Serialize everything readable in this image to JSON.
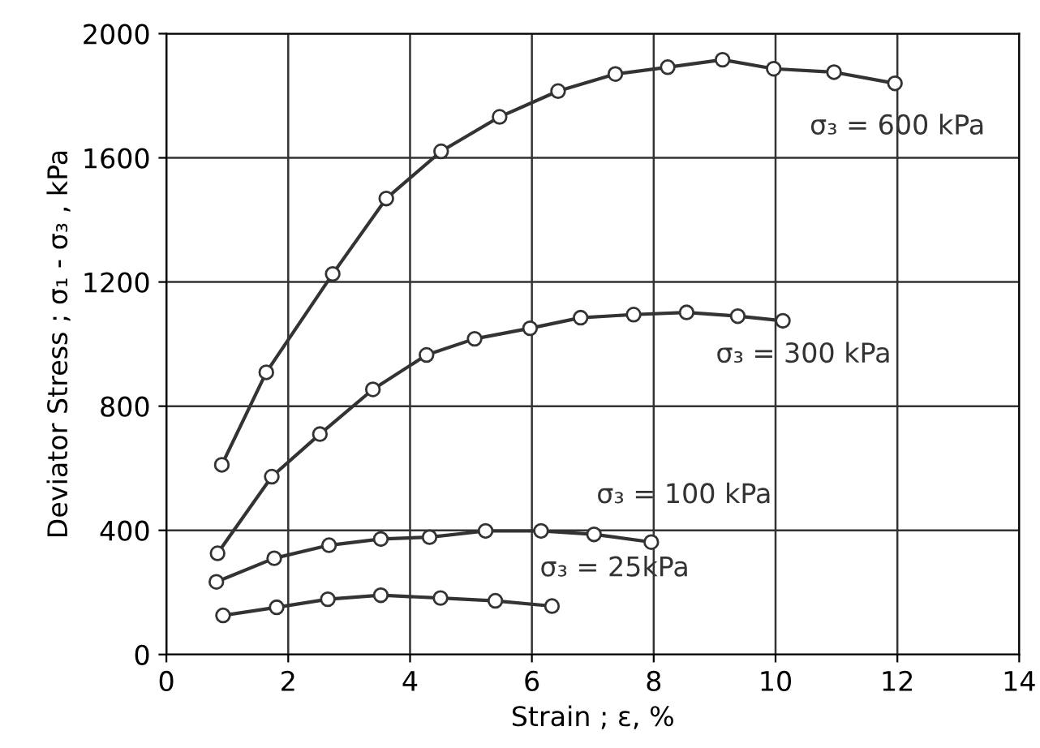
{
  "chart_data": {
    "type": "line",
    "xlabel": "Strain ; ε, %",
    "ylabel": "Deviator Stress ; σ₁ - σ₃ , kPa",
    "xlim": [
      0,
      14
    ],
    "ylim": [
      0,
      2000
    ],
    "xticks": [
      0,
      2,
      4,
      6,
      8,
      10,
      12,
      14
    ],
    "yticks": [
      0,
      400,
      800,
      1200,
      1600,
      2000
    ],
    "grid": true,
    "legend": false,
    "marker": "circle",
    "line_style": "solid",
    "series": [
      {
        "name": "σ₃ = 600 kPa",
        "color": "#333333",
        "x": [
          0.91,
          1.64,
          2.73,
          3.61,
          4.51,
          5.47,
          6.43,
          7.37,
          8.23,
          9.13,
          9.97,
          10.96,
          11.96
        ],
        "values": [
          611,
          909,
          1226,
          1469,
          1621,
          1732,
          1815,
          1870,
          1892,
          1916,
          1887,
          1876,
          1840
        ]
      },
      {
        "name": "σ₃ = 300 kPa",
        "color": "#333333",
        "x": [
          0.84,
          1.73,
          2.52,
          3.39,
          4.27,
          5.06,
          5.97,
          6.8,
          7.67,
          8.54,
          9.38,
          10.12
        ],
        "values": [
          326,
          573,
          710,
          854,
          965,
          1017,
          1051,
          1085,
          1095,
          1102,
          1090,
          1075
        ]
      },
      {
        "name": "σ₃ = 100 kPa",
        "color": "#333333",
        "x": [
          0.82,
          1.77,
          2.67,
          3.52,
          4.32,
          5.24,
          6.15,
          7.02,
          7.96
        ],
        "values": [
          234,
          310,
          352,
          372,
          378,
          398,
          398,
          387,
          362
        ]
      },
      {
        "name": "σ₃ = 25kPa",
        "color": "#333333",
        "x": [
          0.93,
          1.81,
          2.65,
          3.52,
          4.5,
          5.4,
          6.33
        ],
        "values": [
          126,
          152,
          178,
          191,
          182,
          173,
          156
        ]
      }
    ]
  }
}
